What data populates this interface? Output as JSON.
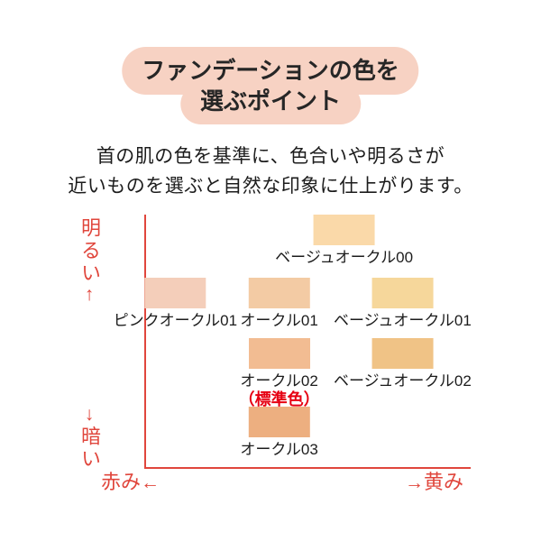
{
  "colors": {
    "canvas_bg": "#ffffff",
    "header_bg": "#f7d2c3",
    "header_text": "#262626",
    "body_text": "#1c1c1c",
    "axis_red": "#e0463c",
    "standard_note_red": "#e60012"
  },
  "header": {
    "line1": "ファンデーションの色を",
    "line2": "選ぶポイント"
  },
  "intro": {
    "line1": "首の肌の色を基準に、色合いや明るさが",
    "line2": "近いものを選ぶと自然な印象に仕上がります。"
  },
  "axes": {
    "y_top": {
      "label": "明るい",
      "arrow": "↑"
    },
    "y_bottom": {
      "arrow": "↓",
      "label": "暗い"
    },
    "x_left": {
      "label": "赤み",
      "arrow": "←"
    },
    "x_right": {
      "arrow": "→",
      "label": "黄み"
    }
  },
  "chart_data": {
    "type": "scatter",
    "title": "ファンデーションの色を選ぶポイント",
    "x_axis": {
      "left_label": "赤み",
      "right_label": "黄み",
      "range": [
        0,
        1
      ]
    },
    "y_axis": {
      "top_label": "明るい",
      "bottom_label": "暗い",
      "range": [
        0,
        1
      ]
    },
    "grid": false,
    "legend": "none",
    "points": [
      {
        "label": "ベージュオークル00",
        "note": "",
        "color": "#fad9a9",
        "x": 0.61,
        "y": 0.94
      },
      {
        "label": "ピンクオークル01",
        "note": "",
        "color": "#f4ceba",
        "x": 0.09,
        "y": 0.69
      },
      {
        "label": "オークル01",
        "note": "",
        "color": "#f3cba4",
        "x": 0.41,
        "y": 0.69
      },
      {
        "label": "ベージュオークル01",
        "note": "",
        "color": "#f6d79b",
        "x": 0.79,
        "y": 0.69
      },
      {
        "label": "オークル02",
        "note": "（標準色）",
        "color": "#f2bc92",
        "x": 0.41,
        "y": 0.45
      },
      {
        "label": "ベージュオークル02",
        "note": "",
        "color": "#f0c386",
        "x": 0.79,
        "y": 0.45
      },
      {
        "label": "オークル03",
        "note": "",
        "color": "#edaf80",
        "x": 0.41,
        "y": 0.18
      }
    ]
  }
}
